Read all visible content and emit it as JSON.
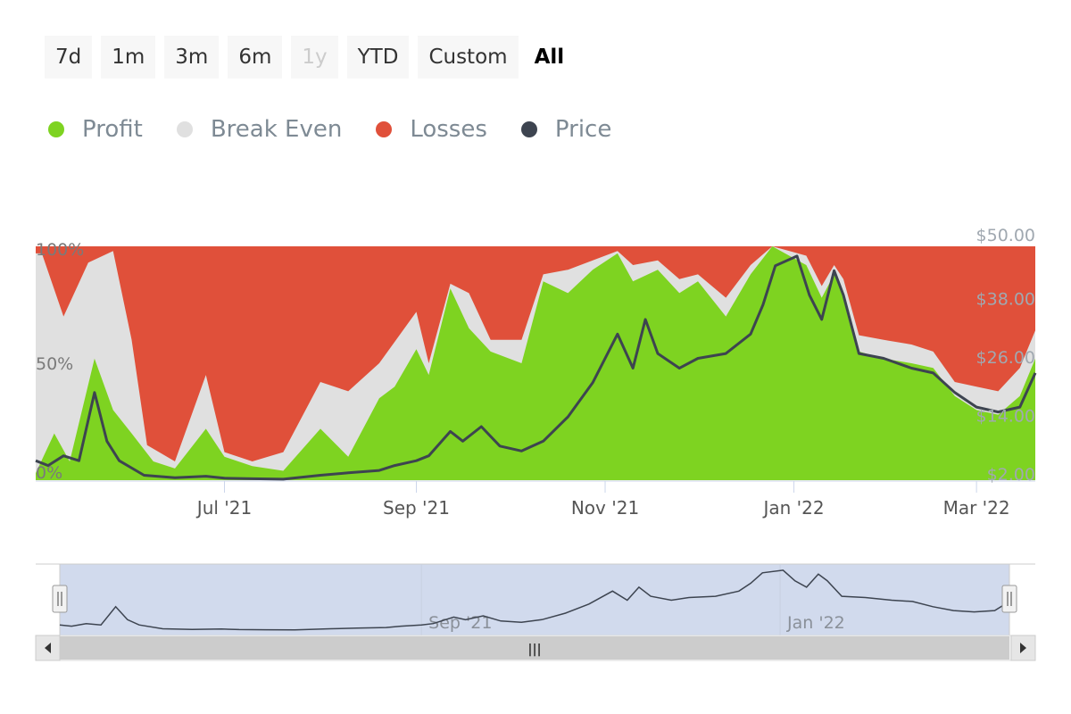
{
  "range_selector": {
    "buttons": [
      {
        "label": "7d",
        "state": "normal"
      },
      {
        "label": "1m",
        "state": "normal"
      },
      {
        "label": "3m",
        "state": "normal"
      },
      {
        "label": "6m",
        "state": "normal"
      },
      {
        "label": "1y",
        "state": "disabled"
      },
      {
        "label": "YTD",
        "state": "normal"
      },
      {
        "label": "Custom",
        "state": "normal"
      },
      {
        "label": "All",
        "state": "active"
      }
    ]
  },
  "legend": [
    {
      "label": "Profit",
      "color": "#7ed321"
    },
    {
      "label": "Break Even",
      "color": "#e0e0e0"
    },
    {
      "label": "Losses",
      "color": "#e0503a"
    },
    {
      "label": "Price",
      "color": "#3d4450"
    }
  ],
  "chart_data": {
    "type": "area",
    "stacking": "percent",
    "x_range": [
      "2021-05-01",
      "2022-03-20"
    ],
    "x_tick_labels": [
      {
        "date": "2021-07-01",
        "label": "Jul '21"
      },
      {
        "date": "2021-09-01",
        "label": "Sep '21"
      },
      {
        "date": "2021-11-01",
        "label": "Nov '21"
      },
      {
        "date": "2022-01-01",
        "label": "Jan '22"
      },
      {
        "date": "2022-03-01",
        "label": "Mar '22"
      }
    ],
    "y_left": {
      "range": [
        0,
        100
      ],
      "tick_labels": [
        {
          "v": 0,
          "label": "0%"
        },
        {
          "v": 50,
          "label": "50%"
        },
        {
          "v": 100,
          "label": "100%"
        }
      ]
    },
    "y_right": {
      "range": [
        2,
        50
      ],
      "tick_labels": [
        {
          "v": 2,
          "label": "$2.00"
        },
        {
          "v": 14,
          "label": "$14.00"
        },
        {
          "v": 26,
          "label": "$26.00"
        },
        {
          "v": 38,
          "label": "$38.00"
        },
        {
          "v": 50,
          "label": "$50.00"
        }
      ]
    },
    "series": [
      {
        "name": "Profit",
        "color": "#7ed321",
        "unit": "%",
        "points": [
          [
            "2021-05-01",
            3
          ],
          [
            "2021-05-07",
            20
          ],
          [
            "2021-05-12",
            8
          ],
          [
            "2021-05-20",
            52
          ],
          [
            "2021-05-26",
            30
          ],
          [
            "2021-06-01",
            20
          ],
          [
            "2021-06-08",
            8
          ],
          [
            "2021-06-15",
            5
          ],
          [
            "2021-06-25",
            22
          ],
          [
            "2021-07-01",
            10
          ],
          [
            "2021-07-10",
            6
          ],
          [
            "2021-07-20",
            4
          ],
          [
            "2021-08-01",
            22
          ],
          [
            "2021-08-10",
            10
          ],
          [
            "2021-08-20",
            35
          ],
          [
            "2021-08-25",
            40
          ],
          [
            "2021-09-01",
            56
          ],
          [
            "2021-09-05",
            45
          ],
          [
            "2021-09-12",
            82
          ],
          [
            "2021-09-18",
            65
          ],
          [
            "2021-09-25",
            55
          ],
          [
            "2021-10-05",
            50
          ],
          [
            "2021-10-12",
            85
          ],
          [
            "2021-10-20",
            80
          ],
          [
            "2021-10-28",
            90
          ],
          [
            "2021-11-05",
            97
          ],
          [
            "2021-11-10",
            85
          ],
          [
            "2021-11-18",
            90
          ],
          [
            "2021-11-25",
            80
          ],
          [
            "2021-12-01",
            85
          ],
          [
            "2021-12-10",
            70
          ],
          [
            "2021-12-18",
            88
          ],
          [
            "2021-12-25",
            100
          ],
          [
            "2022-01-05",
            92
          ],
          [
            "2022-01-10",
            78
          ],
          [
            "2022-01-14",
            88
          ],
          [
            "2022-01-17",
            80
          ],
          [
            "2022-01-22",
            55
          ],
          [
            "2022-01-30",
            52
          ],
          [
            "2022-02-08",
            50
          ],
          [
            "2022-02-15",
            48
          ],
          [
            "2022-02-22",
            36
          ],
          [
            "2022-03-01",
            30
          ],
          [
            "2022-03-08",
            28
          ],
          [
            "2022-03-15",
            36
          ],
          [
            "2022-03-20",
            52
          ]
        ]
      },
      {
        "name": "Break Even",
        "color": "#e0e0e0",
        "unit": "%",
        "points": [
          [
            "2021-05-01",
            97
          ],
          [
            "2021-05-03",
            97
          ],
          [
            "2021-05-10",
            70
          ],
          [
            "2021-05-18",
            93
          ],
          [
            "2021-05-26",
            98
          ],
          [
            "2021-06-01",
            60
          ],
          [
            "2021-06-06",
            15
          ],
          [
            "2021-06-15",
            8
          ],
          [
            "2021-06-25",
            45
          ],
          [
            "2021-07-01",
            12
          ],
          [
            "2021-07-10",
            8
          ],
          [
            "2021-07-20",
            12
          ],
          [
            "2021-08-01",
            42
          ],
          [
            "2021-08-10",
            38
          ],
          [
            "2021-08-20",
            50
          ],
          [
            "2021-09-01",
            72
          ],
          [
            "2021-09-05",
            50
          ],
          [
            "2021-09-12",
            84
          ],
          [
            "2021-09-18",
            80
          ],
          [
            "2021-09-25",
            60
          ],
          [
            "2021-10-05",
            60
          ],
          [
            "2021-10-12",
            88
          ],
          [
            "2021-10-20",
            90
          ],
          [
            "2021-10-28",
            94
          ],
          [
            "2021-11-05",
            98
          ],
          [
            "2021-11-10",
            92
          ],
          [
            "2021-11-18",
            94
          ],
          [
            "2021-11-25",
            86
          ],
          [
            "2021-12-01",
            88
          ],
          [
            "2021-12-10",
            78
          ],
          [
            "2021-12-18",
            92
          ],
          [
            "2021-12-25",
            100
          ],
          [
            "2022-01-05",
            96
          ],
          [
            "2022-01-10",
            83
          ],
          [
            "2022-01-14",
            92
          ],
          [
            "2022-01-17",
            86
          ],
          [
            "2022-01-22",
            62
          ],
          [
            "2022-01-30",
            60
          ],
          [
            "2022-02-08",
            58
          ],
          [
            "2022-02-15",
            55
          ],
          [
            "2022-02-22",
            42
          ],
          [
            "2022-03-01",
            40
          ],
          [
            "2022-03-08",
            38
          ],
          [
            "2022-03-15",
            48
          ],
          [
            "2022-03-20",
            64
          ]
        ]
      },
      {
        "name": "Losses",
        "color": "#e0503a",
        "unit": "%",
        "points": "remainder to 100%"
      },
      {
        "name": "Price",
        "color": "#3d4450",
        "unit": "$",
        "points": [
          [
            "2021-05-01",
            6
          ],
          [
            "2021-05-05",
            5
          ],
          [
            "2021-05-10",
            7
          ],
          [
            "2021-05-15",
            6
          ],
          [
            "2021-05-20",
            20
          ],
          [
            "2021-05-24",
            10
          ],
          [
            "2021-05-28",
            6
          ],
          [
            "2021-06-05",
            3
          ],
          [
            "2021-06-15",
            2.5
          ],
          [
            "2021-06-25",
            2.8
          ],
          [
            "2021-07-01",
            2.4
          ],
          [
            "2021-07-10",
            2.3
          ],
          [
            "2021-07-20",
            2.2
          ],
          [
            "2021-08-01",
            3
          ],
          [
            "2021-08-10",
            3.5
          ],
          [
            "2021-08-20",
            4
          ],
          [
            "2021-08-25",
            5
          ],
          [
            "2021-09-01",
            6
          ],
          [
            "2021-09-05",
            7
          ],
          [
            "2021-09-12",
            12
          ],
          [
            "2021-09-16",
            10
          ],
          [
            "2021-09-22",
            13
          ],
          [
            "2021-09-28",
            9
          ],
          [
            "2021-10-05",
            8
          ],
          [
            "2021-10-12",
            10
          ],
          [
            "2021-10-20",
            15
          ],
          [
            "2021-10-28",
            22
          ],
          [
            "2021-11-05",
            32
          ],
          [
            "2021-11-10",
            25
          ],
          [
            "2021-11-14",
            35
          ],
          [
            "2021-11-18",
            28
          ],
          [
            "2021-11-25",
            25
          ],
          [
            "2021-12-01",
            27
          ],
          [
            "2021-12-10",
            28
          ],
          [
            "2021-12-18",
            32
          ],
          [
            "2021-12-22",
            38
          ],
          [
            "2021-12-26",
            46
          ],
          [
            "2022-01-02",
            48
          ],
          [
            "2022-01-06",
            40
          ],
          [
            "2022-01-10",
            35
          ],
          [
            "2022-01-14",
            45
          ],
          [
            "2022-01-17",
            40
          ],
          [
            "2022-01-22",
            28
          ],
          [
            "2022-01-30",
            27
          ],
          [
            "2022-02-08",
            25
          ],
          [
            "2022-02-15",
            24
          ],
          [
            "2022-02-22",
            20
          ],
          [
            "2022-03-01",
            17
          ],
          [
            "2022-03-08",
            16
          ],
          [
            "2022-03-15",
            17
          ],
          [
            "2022-03-20",
            24
          ]
        ]
      }
    ]
  },
  "navigator": {
    "tick_labels": [
      {
        "date": "2021-09-01",
        "label": "Sep '21"
      },
      {
        "date": "2022-01-01",
        "label": "Jan '22"
      }
    ],
    "handle_glyph": "|||",
    "scroll_glyph": "|||"
  }
}
